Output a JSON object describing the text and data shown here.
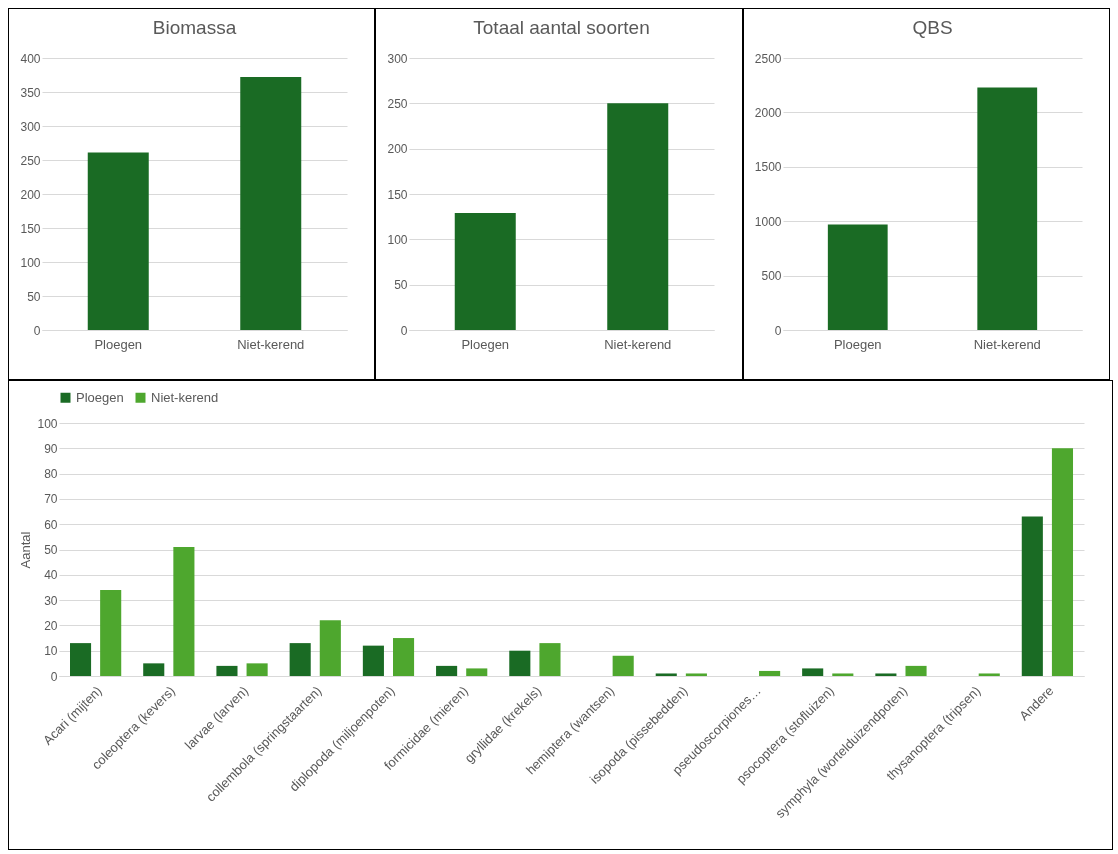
{
  "chart_data": [
    {
      "type": "bar",
      "title": "Biomassa",
      "categories": [
        "Ploegen",
        "Niet-kerend"
      ],
      "values": [
        261,
        372
      ],
      "color": "#1a6b24",
      "ylim": [
        0,
        400
      ],
      "yticks": [
        0,
        50,
        100,
        150,
        200,
        250,
        300,
        350,
        400
      ],
      "grid": "y"
    },
    {
      "type": "bar",
      "title": "Totaal aantal soorten",
      "categories": [
        "Ploegen",
        "Niet-kerend"
      ],
      "values": [
        129,
        250
      ],
      "color": "#1a6b24",
      "ylim": [
        0,
        300
      ],
      "yticks": [
        0,
        50,
        100,
        150,
        200,
        250,
        300
      ],
      "grid": "y"
    },
    {
      "type": "bar",
      "title": "QBS",
      "categories": [
        "Ploegen",
        "Niet-kerend"
      ],
      "values": [
        970,
        2230
      ],
      "color": "#1a6b24",
      "ylim": [
        0,
        2500
      ],
      "yticks": [
        0,
        500,
        1000,
        1500,
        2000,
        2500
      ],
      "grid": "y"
    },
    {
      "type": "bar",
      "ylabel": "Aantal",
      "categories": [
        "Acari (mijten)",
        "coleoptera (kevers)",
        "larvae (larven)",
        "collembola (springstaarten)",
        "diplopoda (miljoenpoten)",
        "formicidae (mieren)",
        "gryllidae (krekels)",
        "hemiptera (wantsen)",
        "isopoda (pissebedden)",
        "pseudoscorpiones…",
        "psocoptera (stofluizen)",
        "symphyla (wortelduizendpoten)",
        "thysanoptera (tripsen)",
        "Andere"
      ],
      "series": [
        {
          "name": "Ploegen",
          "color": "#1a6b24",
          "values": [
            13,
            5,
            4,
            13,
            12,
            4,
            10,
            null,
            1,
            null,
            3,
            1,
            null,
            63
          ]
        },
        {
          "name": "Niet-kerend",
          "color": "#4ea72e",
          "values": [
            34,
            51,
            5,
            22,
            15,
            3,
            13,
            8,
            1,
            2,
            1,
            4,
            1,
            90
          ]
        }
      ],
      "ylim": [
        0,
        100
      ],
      "yticks": [
        0,
        10,
        20,
        30,
        40,
        50,
        60,
        70,
        80,
        90,
        100
      ],
      "grid": "y",
      "legend": "top"
    }
  ]
}
